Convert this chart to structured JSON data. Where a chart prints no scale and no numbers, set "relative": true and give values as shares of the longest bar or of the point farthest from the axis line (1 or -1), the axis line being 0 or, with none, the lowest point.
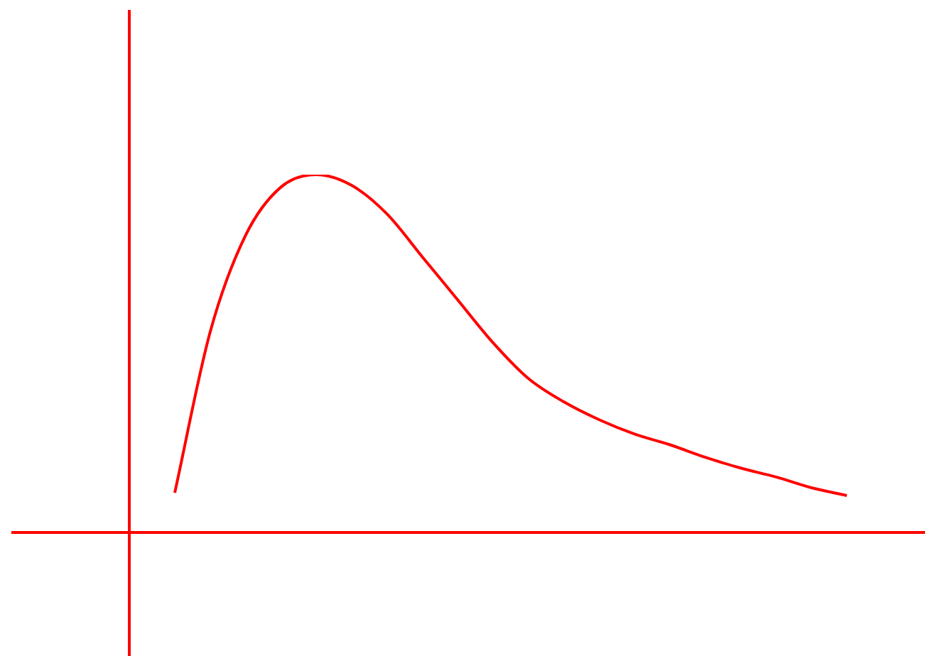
{
  "chart_data": {
    "type": "line",
    "relative": true,
    "categories": [
      null,
      null,
      null,
      null,
      null,
      null,
      null,
      null,
      null,
      null,
      null,
      null,
      null,
      null,
      null,
      null,
      null,
      null,
      null,
      null
    ],
    "series": [
      {
        "color": "#ff0000",
        "values": [
          0.111,
          0.56,
          0.83,
          0.965,
          1.0,
          0.97,
          0.89,
          0.77,
          0.65,
          0.53,
          0.43,
          0.365,
          0.315,
          0.275,
          0.245,
          0.21,
          0.18,
          0.155,
          0.125,
          0.103
        ]
      }
    ],
    "legend": false,
    "marker": "none",
    "line_style": "solid"
  }
}
